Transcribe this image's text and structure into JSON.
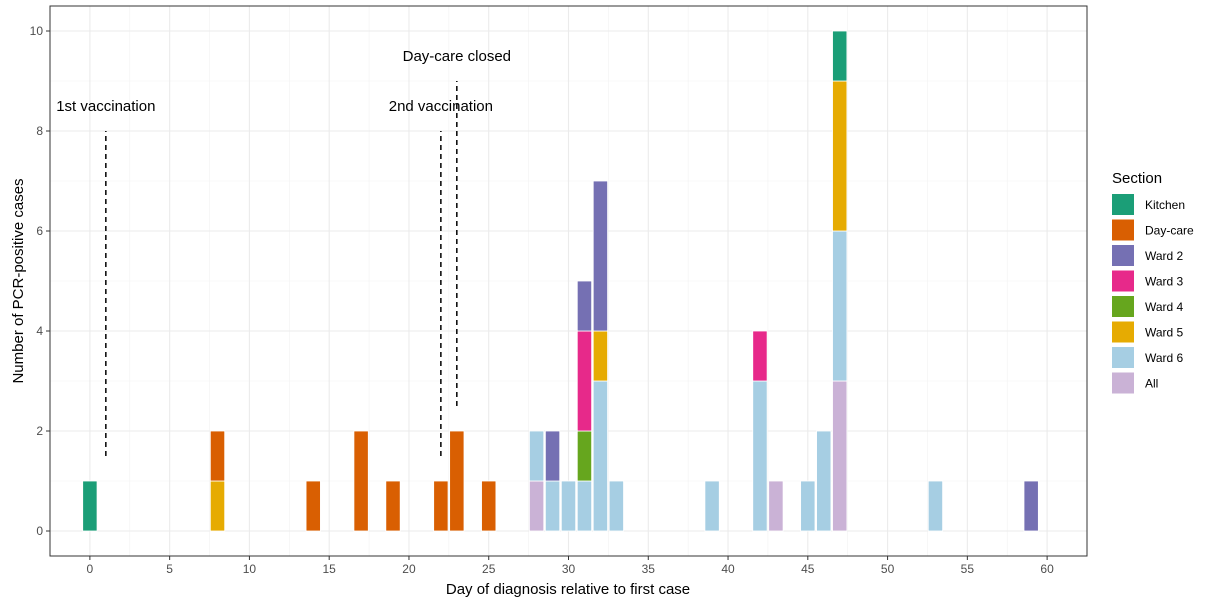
{
  "chart_data": {
    "type": "bar",
    "stacked": true,
    "xlabel": "Day of diagnosis relative to first case",
    "ylabel": "Number of PCR-positive cases",
    "xlim": [
      -2.5,
      62.5
    ],
    "ylim": [
      -0.5,
      10.5
    ],
    "x_ticks": [
      0,
      5,
      10,
      15,
      20,
      25,
      30,
      35,
      40,
      45,
      50,
      55,
      60
    ],
    "y_ticks": [
      0,
      2,
      4,
      6,
      8,
      10
    ],
    "grid": true,
    "legend": {
      "title": "Section",
      "position": "right",
      "items": [
        {
          "name": "Kitchen",
          "color": "#1B9E77"
        },
        {
          "name": "Day-care",
          "color": "#D95F02"
        },
        {
          "name": "Ward 2",
          "color": "#7570B3"
        },
        {
          "name": "Ward 3",
          "color": "#E7298A"
        },
        {
          "name": "Ward 4",
          "color": "#66A61E"
        },
        {
          "name": "Ward 5",
          "color": "#E6AB02"
        },
        {
          "name": "Ward 6",
          "color": "#A6CEE3"
        },
        {
          "name": "All",
          "color": "#CAB2D6"
        }
      ]
    },
    "stack_order_bottom_to_top": [
      "All",
      "Ward 6",
      "Ward 5",
      "Ward 4",
      "Ward 3",
      "Ward 2",
      "Day-care",
      "Kitchen"
    ],
    "bars": [
      {
        "day": 0,
        "counts": {
          "Kitchen": 1
        }
      },
      {
        "day": 8,
        "counts": {
          "Ward 5": 1,
          "Day-care": 1
        }
      },
      {
        "day": 14,
        "counts": {
          "Day-care": 1
        }
      },
      {
        "day": 17,
        "counts": {
          "Day-care": 2
        }
      },
      {
        "day": 19,
        "counts": {
          "Day-care": 1
        }
      },
      {
        "day": 22,
        "counts": {
          "Day-care": 1
        }
      },
      {
        "day": 23,
        "counts": {
          "Day-care": 2
        }
      },
      {
        "day": 25,
        "counts": {
          "Day-care": 1
        }
      },
      {
        "day": 28,
        "counts": {
          "All": 1,
          "Ward 6": 1
        }
      },
      {
        "day": 29,
        "counts": {
          "Ward 6": 1,
          "Ward 2": 1
        }
      },
      {
        "day": 30,
        "counts": {
          "Ward 6": 1
        }
      },
      {
        "day": 31,
        "counts": {
          "Ward 6": 1,
          "Ward 4": 1,
          "Ward 3": 2,
          "Ward 2": 1
        }
      },
      {
        "day": 32,
        "counts": {
          "Ward 6": 3,
          "Ward 5": 1,
          "Ward 2": 3
        }
      },
      {
        "day": 33,
        "counts": {
          "Ward 6": 1
        }
      },
      {
        "day": 39,
        "counts": {
          "Ward 6": 1
        }
      },
      {
        "day": 42,
        "counts": {
          "Ward 6": 3,
          "Ward 3": 1
        }
      },
      {
        "day": 43,
        "counts": {
          "All": 1
        }
      },
      {
        "day": 45,
        "counts": {
          "Ward 6": 1
        }
      },
      {
        "day": 46,
        "counts": {
          "Ward 6": 2
        }
      },
      {
        "day": 47,
        "counts": {
          "All": 3,
          "Ward 6": 3,
          "Ward 5": 3,
          "Kitchen": 1
        }
      },
      {
        "day": 53,
        "counts": {
          "Ward 6": 1
        }
      },
      {
        "day": 59,
        "counts": {
          "Ward 2": 1
        }
      }
    ],
    "annotations": [
      {
        "text": "1st vaccination",
        "x": 1,
        "y_from": 1.5,
        "y_to": 8,
        "label_y": 8.5
      },
      {
        "text": "2nd vaccination",
        "x": 22,
        "y_from": 1.5,
        "y_to": 8,
        "label_y": 8.5
      },
      {
        "text": "Day-care closed",
        "x": 23,
        "y_from": 2.5,
        "y_to": 9,
        "label_y": 9.5
      }
    ]
  }
}
